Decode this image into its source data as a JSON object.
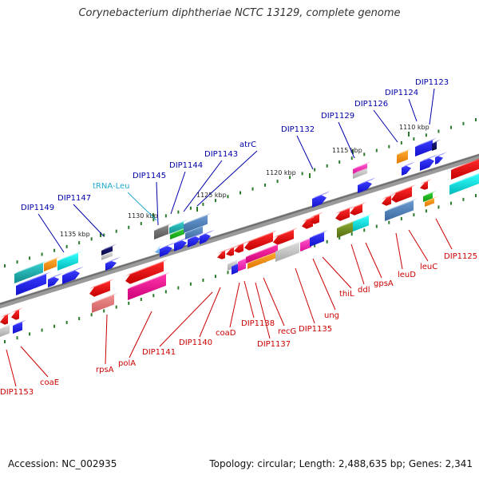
{
  "title": "Corynebacterium diphtheriae NCTC 13129, complete genome",
  "footer": {
    "accession": "Accession: NC_002935",
    "summary": "Topology: circular; Length: 2,488,635 bp; Genes: 2,341"
  },
  "colors": {
    "backbone": "#808080",
    "forward_label": "#0000aa",
    "reverse_label": "#cc0000",
    "trna_label": "#22aacc",
    "tick": "#2a7a2a"
  },
  "ticks": [
    {
      "label": "1135 kbp"
    },
    {
      "label": "1130 kbp"
    },
    {
      "label": "1125 kbp"
    },
    {
      "label": "1120 kbp"
    },
    {
      "label": "1115 kbp"
    },
    {
      "label": "1110 kbp"
    }
  ],
  "forward_genes": [
    {
      "label": "DIP1149"
    },
    {
      "label": "DIP1147"
    },
    {
      "label": "tRNA-Leu"
    },
    {
      "label": "DIP1145"
    },
    {
      "label": "DIP1144"
    },
    {
      "label": "DIP1143"
    },
    {
      "label": "atrC"
    },
    {
      "label": "DIP1132"
    },
    {
      "label": "DIP1129"
    },
    {
      "label": "DIP1126"
    },
    {
      "label": "DIP1124"
    },
    {
      "label": "DIP1123"
    }
  ],
  "reverse_genes": [
    {
      "label": "DIP1153"
    },
    {
      "label": "coaE"
    },
    {
      "label": "rpsA"
    },
    {
      "label": "polA"
    },
    {
      "label": "DIP1141"
    },
    {
      "label": "DIP1140"
    },
    {
      "label": "coaD"
    },
    {
      "label": "DIP1138"
    },
    {
      "label": "DIP1137"
    },
    {
      "label": "recG"
    },
    {
      "label": "DIP1135"
    },
    {
      "label": "ung"
    },
    {
      "label": "thiL"
    },
    {
      "label": "ddl"
    },
    {
      "label": "gpsA"
    },
    {
      "label": "leuD"
    },
    {
      "label": "leuC"
    },
    {
      "label": "DIP1125"
    }
  ]
}
